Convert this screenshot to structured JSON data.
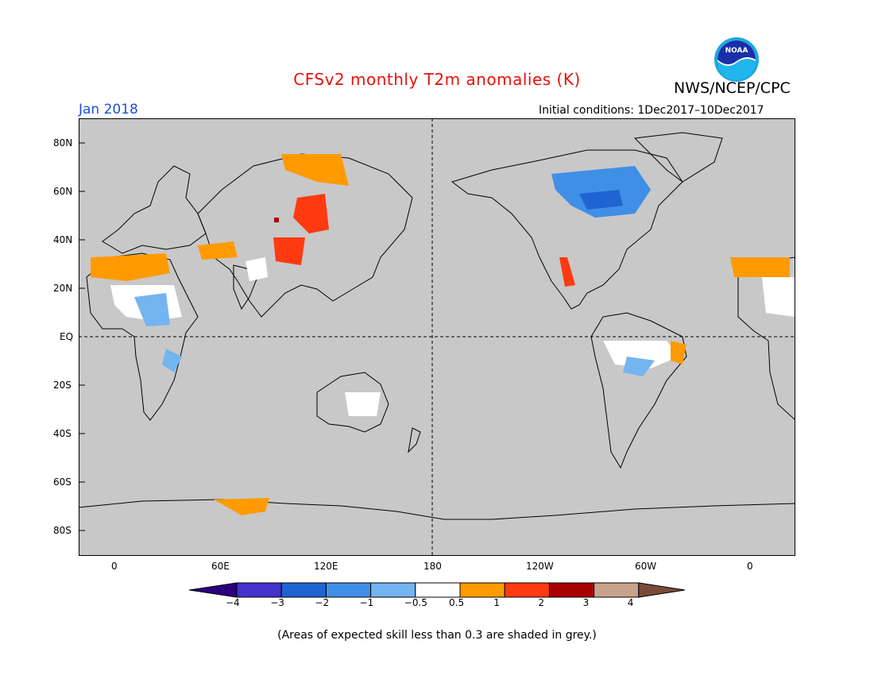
{
  "header": {
    "title": "CFSv2 monthly T2m anomalies (K)",
    "org": "NWS/NCEP/CPC",
    "month": "Jan 2018",
    "initial_conditions": "Initial conditions: 1Dec2017–10Dec2017",
    "logo_text": "NOAA"
  },
  "map": {
    "ocean_color": "#c8c8c8",
    "land_color": "#c8c8c8",
    "lat_labels": [
      "80N",
      "60N",
      "40N",
      "20N",
      "EQ",
      "20S",
      "40S",
      "60S",
      "80S"
    ],
    "lon_labels": [
      "0",
      "60E",
      "120E",
      "180",
      "120W",
      "60W",
      "0"
    ]
  },
  "colorbar": {
    "colors": [
      "#2a0080",
      "#4433cc",
      "#1f64d0",
      "#3f8fe6",
      "#74b4f0",
      "#ffffff",
      "#ff9b00",
      "#ff3a10",
      "#a80000",
      "#c9a28c",
      "#7a4a3a"
    ],
    "labels": [
      "−4",
      "−3",
      "−2",
      "−1",
      "−0.5",
      "0.5",
      "1",
      "2",
      "3",
      "4"
    ]
  },
  "footnote": "(Areas of expected skill less than 0.3 are shaded in grey.)"
}
